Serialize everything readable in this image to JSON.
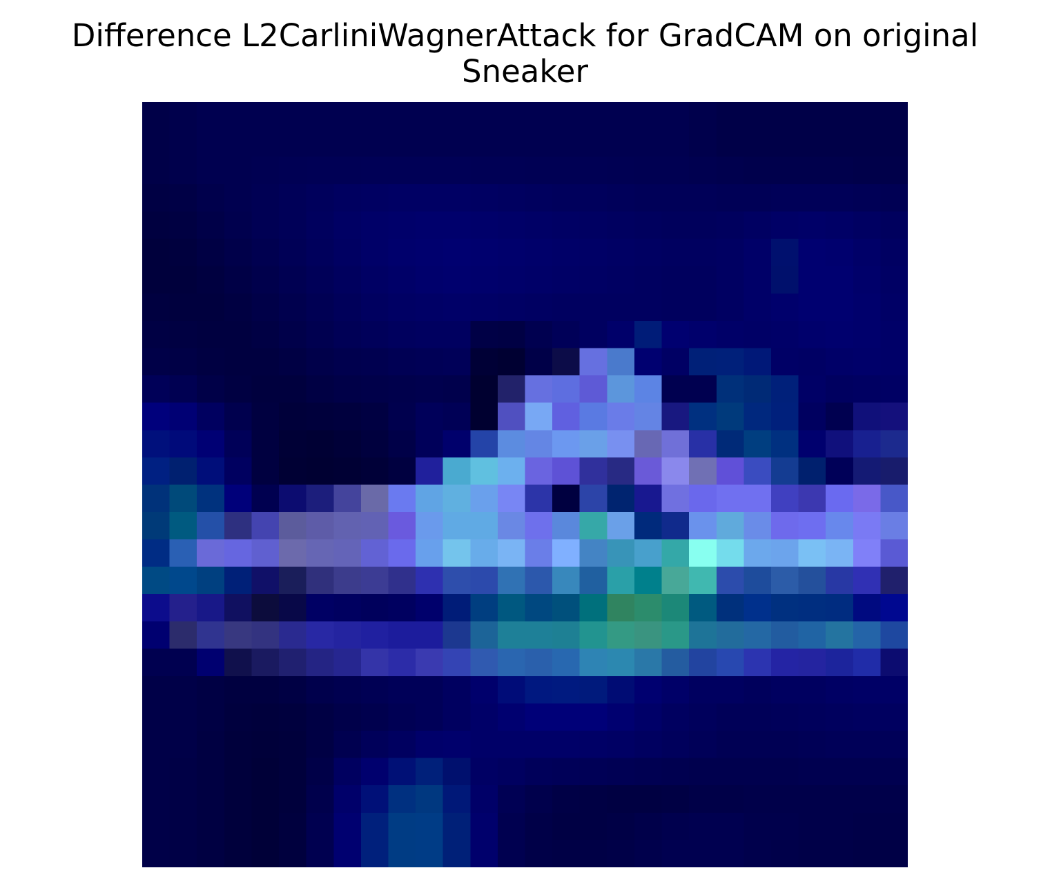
{
  "chart_data": {
    "type": "heatmap",
    "title_lines": [
      "Difference L2CarliniWagnerAttack for GradCAM on original",
      "Sneaker"
    ],
    "xlabel": "",
    "ylabel": "",
    "axes_visible": false,
    "grid": false,
    "legend": "none",
    "rows": 28,
    "cols": 28,
    "cell_colors": [
      [
        "#000048",
        "#00004c",
        "#000050",
        "#000050",
        "#000050",
        "#000050",
        "#000050",
        "#000050",
        "#000050",
        "#000050",
        "#000050",
        "#000050",
        "#000050",
        "#000050",
        "#000050",
        "#000050",
        "#000050",
        "#000050",
        "#000050",
        "#000050",
        "#00004c",
        "#000048",
        "#000048",
        "#000048",
        "#000048",
        "#000048",
        "#000048",
        "#000048"
      ],
      [
        "#000048",
        "#00004c",
        "#000050",
        "#000050",
        "#000050",
        "#000050",
        "#000050",
        "#000050",
        "#000050",
        "#000050",
        "#000050",
        "#000050",
        "#000050",
        "#000050",
        "#000050",
        "#000050",
        "#000050",
        "#000050",
        "#000050",
        "#000050",
        "#00004c",
        "#000048",
        "#000048",
        "#000048",
        "#000048",
        "#000048",
        "#000048",
        "#000048"
      ],
      [
        "#000048",
        "#00004c",
        "#000050",
        "#000050",
        "#000052",
        "#000054",
        "#000055",
        "#000055",
        "#000056",
        "#000056",
        "#000056",
        "#000056",
        "#000055",
        "#000055",
        "#000054",
        "#000054",
        "#000054",
        "#000053",
        "#000052",
        "#000052",
        "#000050",
        "#00004e",
        "#00004c",
        "#00004c",
        "#00004c",
        "#00004c",
        "#00004a",
        "#00004a"
      ],
      [
        "#000044",
        "#000046",
        "#00004c",
        "#000050",
        "#000054",
        "#000058",
        "#00005c",
        "#000060",
        "#000062",
        "#000064",
        "#000064",
        "#000064",
        "#000062",
        "#000060",
        "#00005e",
        "#00005c",
        "#00005c",
        "#00005a",
        "#000058",
        "#000058",
        "#000058",
        "#000056",
        "#000056",
        "#000058",
        "#000058",
        "#000058",
        "#000056",
        "#000054"
      ],
      [
        "#000040",
        "#000042",
        "#000048",
        "#00004e",
        "#000054",
        "#000058",
        "#00005e",
        "#000064",
        "#000068",
        "#00006a",
        "#00006c",
        "#00006c",
        "#00006a",
        "#000068",
        "#000066",
        "#000064",
        "#000062",
        "#000060",
        "#00005e",
        "#00005c",
        "#00005c",
        "#00005e",
        "#000062",
        "#000066",
        "#000068",
        "#000066",
        "#000062",
        "#00005e"
      ],
      [
        "#00003c",
        "#00003e",
        "#000044",
        "#00004a",
        "#000050",
        "#000056",
        "#00005c",
        "#000062",
        "#000068",
        "#00006c",
        "#00006e",
        "#000070",
        "#00006e",
        "#00006c",
        "#00006a",
        "#000068",
        "#000066",
        "#000064",
        "#000062",
        "#000060",
        "#000060",
        "#000062",
        "#000068",
        "#00106e",
        "#000070",
        "#00006e",
        "#000068",
        "#000062"
      ],
      [
        "#00003c",
        "#00003c",
        "#000040",
        "#000046",
        "#00004c",
        "#000052",
        "#000058",
        "#00005e",
        "#000064",
        "#000068",
        "#00006c",
        "#00006e",
        "#00006c",
        "#00006a",
        "#000068",
        "#000066",
        "#000064",
        "#000062",
        "#000060",
        "#00005e",
        "#00005e",
        "#000062",
        "#000068",
        "#00106c",
        "#000070",
        "#000070",
        "#00006a",
        "#000064"
      ],
      [
        "#000040",
        "#00003e",
        "#00003e",
        "#000042",
        "#000048",
        "#00004e",
        "#000054",
        "#00005a",
        "#000060",
        "#000064",
        "#000066",
        "#000068",
        "#000066",
        "#000064",
        "#000062",
        "#000060",
        "#000060",
        "#000060",
        "#000060",
        "#00005e",
        "#00005e",
        "#000062",
        "#000068",
        "#00006c",
        "#000070",
        "#000070",
        "#00006c",
        "#000066"
      ],
      [
        "#000044",
        "#000042",
        "#000040",
        "#000040",
        "#000044",
        "#00004a",
        "#000050",
        "#000056",
        "#00005a",
        "#00005e",
        "#000060",
        "#000060",
        "#000046",
        "#000044",
        "#000050",
        "#000058",
        "#000060",
        "#00006a",
        "#001c78",
        "#000070",
        "#00006c",
        "#000068",
        "#000066",
        "#000068",
        "#00006c",
        "#00006e",
        "#00006c",
        "#000068"
      ],
      [
        "#000048",
        "#000046",
        "#000042",
        "#000040",
        "#000040",
        "#000044",
        "#00004a",
        "#00004e",
        "#000050",
        "#000054",
        "#000056",
        "#000058",
        "#000036",
        "#000032",
        "#000048",
        "#0c0c48",
        "#6670e0",
        "#4a7acc",
        "#000070",
        "#000064",
        "#002078",
        "#00207a",
        "#001878",
        "#000066",
        "#000064",
        "#000068",
        "#00006a",
        "#000068"
      ],
      [
        "#000058",
        "#000052",
        "#000048",
        "#000042",
        "#00003e",
        "#00003e",
        "#000044",
        "#000048",
        "#00004a",
        "#00004c",
        "#00004e",
        "#00004c",
        "#000030",
        "#22226a",
        "#6670e0",
        "#5e6ee0",
        "#5e5ad6",
        "#5c96dc",
        "#5c84e4",
        "#000050",
        "#000050",
        "#00307a",
        "#002a76",
        "#00207a",
        "#000066",
        "#000060",
        "#000062",
        "#000064"
      ],
      [
        "#00007c",
        "#000074",
        "#000060",
        "#00004e",
        "#000040",
        "#00003a",
        "#00003c",
        "#00003e",
        "#000042",
        "#00004e",
        "#00005a",
        "#000056",
        "#000030",
        "#5050c0",
        "#78a8f4",
        "#6060e0",
        "#5a7ae2",
        "#6a7ce8",
        "#6484e4",
        "#181880",
        "#003080",
        "#003a7c",
        "#00287e",
        "#00207c",
        "#000060",
        "#000050",
        "#10107a",
        "#14107c"
      ],
      [
        "#00107c",
        "#000a7a",
        "#000074",
        "#000058",
        "#000040",
        "#000036",
        "#000034",
        "#000038",
        "#00003e",
        "#000048",
        "#00005a",
        "#00006c",
        "#2444a8",
        "#5c8ce0",
        "#6486e4",
        "#6c98f0",
        "#6aa0e8",
        "#7890f0",
        "#6868b4",
        "#7070d8",
        "#2830a6",
        "#002a78",
        "#003e80",
        "#003080",
        "#00006e",
        "#10107c",
        "#182090",
        "#1c2a8e"
      ],
      [
        "#002082",
        "#002070",
        "#000e7a",
        "#000060",
        "#000040",
        "#000034",
        "#000032",
        "#000034",
        "#000038",
        "#000040",
        "#20209c",
        "#4aaad0",
        "#60c0e0",
        "#6cb0ee",
        "#6a64e0",
        "#5e52d6",
        "#30309c",
        "#282a84",
        "#6a5ad8",
        "#8a88ec",
        "#7070b4",
        "#6050d8",
        "#3a4cc0",
        "#143c92",
        "#00206e",
        "#000058",
        "#141a74",
        "#181c6c"
      ],
      [
        "#00327a",
        "#004a7a",
        "#00327e",
        "#00007a",
        "#000050",
        "#0c0c70",
        "#1c1e7c",
        "#44449c",
        "#6a6aa8",
        "#6a7af0",
        "#60a4e4",
        "#60b0e0",
        "#6aa0ec",
        "#7886f4",
        "#2c34a8",
        "#000040",
        "#2c44a8",
        "#002470",
        "#181890",
        "#7070e0",
        "#6a68ec",
        "#7070f0",
        "#7070f0",
        "#4040c0",
        "#3c38b0",
        "#6a6af0",
        "#7a6ae8",
        "#4858c8"
      ],
      [
        "#003a78",
        "#005a80",
        "#2450a8",
        "#2e3080",
        "#4444b0",
        "#5c5c9c",
        "#5e5ca8",
        "#6262b0",
        "#6262b4",
        "#6a5ade",
        "#6a9aec",
        "#60aae4",
        "#60aae4",
        "#6a88e4",
        "#6e70ec",
        "#5a88dc",
        "#36a8a8",
        "#6aa0e8",
        "#002a7c",
        "#102a8c",
        "#6a92ec",
        "#60aadc",
        "#6a8ce8",
        "#6e6aec",
        "#6e6ef0",
        "#6888ec",
        "#7a7af4",
        "#6a7ee4"
      ],
      [
        "#002c84",
        "#2a60b4",
        "#6a6ad8",
        "#6666e0",
        "#6060d0",
        "#6c6aac",
        "#6666b4",
        "#6464b8",
        "#6262d4",
        "#6a6aec",
        "#68a0ec",
        "#74c4ec",
        "#68acea",
        "#7ab4f4",
        "#6a7ee8",
        "#80b0ff",
        "#4484c4",
        "#3894b8",
        "#48a0cc",
        "#34a8a8",
        "#88fff0",
        "#74dcec",
        "#6ca8ec",
        "#6ca4ec",
        "#7ac0f4",
        "#7ab4f4",
        "#8080f8",
        "#5a5ad4"
      ],
      [
        "#004a84",
        "#00488c",
        "#004080",
        "#002078",
        "#101068",
        "#1a1e5a",
        "#30307c",
        "#3c3c8c",
        "#3c3c94",
        "#30308c",
        "#2e30b0",
        "#2e4eac",
        "#2c4aac",
        "#3072b4",
        "#2c58ac",
        "#3888bc",
        "#2060a0",
        "#2aa0a8",
        "#00808c",
        "#48a898",
        "#40b8b0",
        "#2c4cac",
        "#1e4c9c",
        "#2c5ca8",
        "#24509c",
        "#2838a4",
        "#3030b4",
        "#20206c"
      ],
      [
        "#0c0c8c",
        "#24208c",
        "#181888",
        "#101060",
        "#0c0c3c",
        "#080848",
        "#000064",
        "#000060",
        "#00005c",
        "#000060",
        "#00006c",
        "#001c78",
        "#003e80",
        "#005880",
        "#004880",
        "#00507c",
        "#00707c",
        "#308460",
        "#2c8c6c",
        "#1c8878",
        "#005a80",
        "#00307c",
        "#00308c",
        "#003080",
        "#002e80",
        "#002c80",
        "#000a80",
        "#000890"
      ],
      [
        "#000070",
        "#2c2c6c",
        "#303490",
        "#383880",
        "#333380",
        "#2a2a90",
        "#2828a4",
        "#2424a0",
        "#2020a0",
        "#1c1c9c",
        "#1c1c9c",
        "#1c3890",
        "#1c6498",
        "#1e8098",
        "#1e8098",
        "#1e8094",
        "#229490",
        "#349a84",
        "#3a9480",
        "#2a9888",
        "#1e7498",
        "#226c9c",
        "#2468a4",
        "#225ca0",
        "#2064a4",
        "#2474a0",
        "#2464a8",
        "#1e48a0"
      ],
      [
        "#000050",
        "#000050",
        "#000070",
        "#10104c",
        "#1a1a60",
        "#202070",
        "#242484",
        "#262690",
        "#3434a8",
        "#2c2ca8",
        "#3a3ab0",
        "#3444b4",
        "#305ab0",
        "#2a66b0",
        "#2a60ac",
        "#2868b0",
        "#2e84b4",
        "#2c88b0",
        "#2a78a8",
        "#245ca0",
        "#2244a0",
        "#2848b0",
        "#2c34b0",
        "#2424a4",
        "#2424a0",
        "#1c249c",
        "#202ca8",
        "#0c0c70"
      ],
      [
        "#000048",
        "#000048",
        "#000044",
        "#000040",
        "#000040",
        "#000044",
        "#00004c",
        "#000050",
        "#000054",
        "#000058",
        "#000058",
        "#000060",
        "#00006c",
        "#000c78",
        "#001880",
        "#001a80",
        "#001a7c",
        "#000c74",
        "#000070",
        "#000068",
        "#000060",
        "#000060",
        "#00005c",
        "#000060",
        "#000060",
        "#000064",
        "#000066",
        "#000066"
      ],
      [
        "#000048",
        "#000048",
        "#000044",
        "#00003e",
        "#00003c",
        "#00003e",
        "#000044",
        "#00004a",
        "#00004e",
        "#000054",
        "#000058",
        "#000060",
        "#000068",
        "#000070",
        "#000078",
        "#000078",
        "#000078",
        "#000070",
        "#000068",
        "#000060",
        "#00005c",
        "#000058",
        "#000058",
        "#00005a",
        "#00005c",
        "#00005e",
        "#000060",
        "#000060"
      ],
      [
        "#000048",
        "#000048",
        "#000042",
        "#00003c",
        "#00003a",
        "#00003c",
        "#000044",
        "#000050",
        "#00005a",
        "#000060",
        "#00006a",
        "#00006c",
        "#000068",
        "#000068",
        "#000068",
        "#000068",
        "#000066",
        "#000064",
        "#000060",
        "#00005c",
        "#000058",
        "#000054",
        "#000054",
        "#000054",
        "#000056",
        "#000058",
        "#000058",
        "#000058"
      ],
      [
        "#000048",
        "#000046",
        "#000042",
        "#00003c",
        "#000038",
        "#00003c",
        "#000048",
        "#000060",
        "#00006e",
        "#001076",
        "#00207a",
        "#00106e",
        "#000064",
        "#000060",
        "#00005a",
        "#000058",
        "#000056",
        "#000054",
        "#000052",
        "#000050",
        "#00004e",
        "#00004e",
        "#00004e",
        "#00004e",
        "#000050",
        "#000050",
        "#000050",
        "#000050"
      ],
      [
        "#000048",
        "#000046",
        "#000042",
        "#00003c",
        "#000038",
        "#00003c",
        "#00004c",
        "#00006a",
        "#001078",
        "#003080",
        "#003880",
        "#001878",
        "#000068",
        "#000054",
        "#00004c",
        "#000046",
        "#000044",
        "#000042",
        "#000042",
        "#000044",
        "#000048",
        "#000048",
        "#00004a",
        "#00004a",
        "#00004a",
        "#00004a",
        "#00004a",
        "#00004a"
      ],
      [
        "#000048",
        "#000046",
        "#000042",
        "#00003c",
        "#000038",
        "#00003e",
        "#000050",
        "#000070",
        "#00207c",
        "#003c84",
        "#003c86",
        "#002078",
        "#00006c",
        "#000050",
        "#000048",
        "#000044",
        "#000044",
        "#000046",
        "#00004a",
        "#00004e",
        "#000050",
        "#000050",
        "#00004c",
        "#00004c",
        "#00004a",
        "#00004a",
        "#000048",
        "#000048"
      ],
      [
        "#000048",
        "#000046",
        "#000042",
        "#00003c",
        "#000038",
        "#00003e",
        "#000050",
        "#000070",
        "#00207c",
        "#003c84",
        "#003c86",
        "#002078",
        "#00006c",
        "#000050",
        "#000048",
        "#000046",
        "#000046",
        "#000048",
        "#00004c",
        "#000050",
        "#000050",
        "#000050",
        "#00004c",
        "#00004a",
        "#000048",
        "#000048",
        "#000046",
        "#000046"
      ]
    ]
  }
}
